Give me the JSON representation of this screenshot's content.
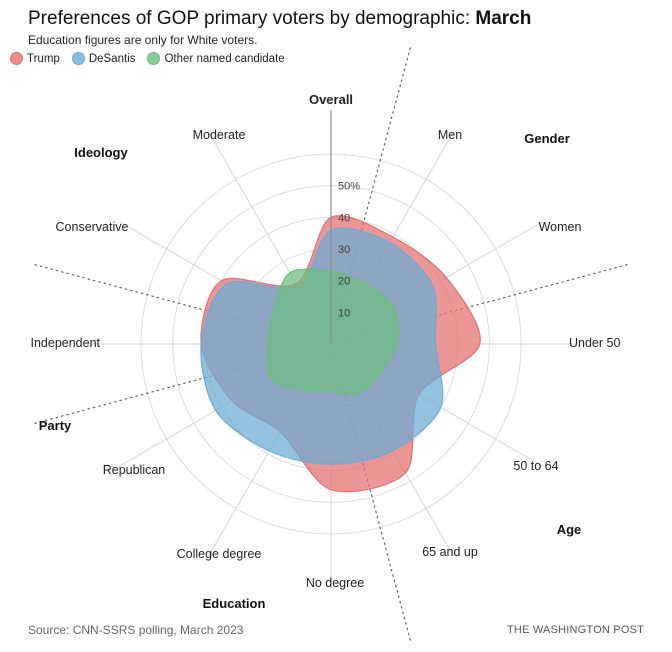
{
  "title_prefix": "Preferences of GOP primary voters by demographic: ",
  "title_bold": "March",
  "subtitle": "Education figures are only for White voters.",
  "source": "Source: CNN-SSRS polling, March 2023",
  "credit": "THE WASHINGTON POST",
  "chart_data": {
    "type": "radar",
    "title": "Preferences of GOP primary voters by demographic: March",
    "subtitle": "Education figures are only for White voters.",
    "categories": [
      "Overall",
      "Men",
      "Women",
      "Under 50",
      "50 to 64",
      "65 and up",
      "No degree",
      "College degree",
      "Republican",
      "Independent",
      "Conservative",
      "Moderate"
    ],
    "groups": [
      "Overall",
      "Gender",
      "Age",
      "Education",
      "Party",
      "Ideology"
    ],
    "axis_ticks": [
      "10",
      "20",
      "30",
      "40",
      "50%"
    ],
    "tick_values": [
      10,
      20,
      30,
      40,
      50
    ],
    "rmax": 60,
    "grid": true,
    "legend_position": "top-left",
    "series": [
      {
        "name": "Trump",
        "color": "#e36f70",
        "values": [
          40,
          39,
          42,
          47,
          32,
          47,
          46,
          32,
          36,
          41,
          40,
          22
        ]
      },
      {
        "name": "DeSantis",
        "color": "#6baad6",
        "values": [
          36,
          37,
          37,
          33,
          40,
          39,
          38,
          39,
          42,
          41,
          38,
          21
        ]
      },
      {
        "name": "Other named candidate",
        "color": "#6cbd7e",
        "values": [
          23,
          22,
          23,
          21,
          18,
          18,
          15,
          17,
          22,
          20,
          21,
          26
        ]
      }
    ]
  }
}
